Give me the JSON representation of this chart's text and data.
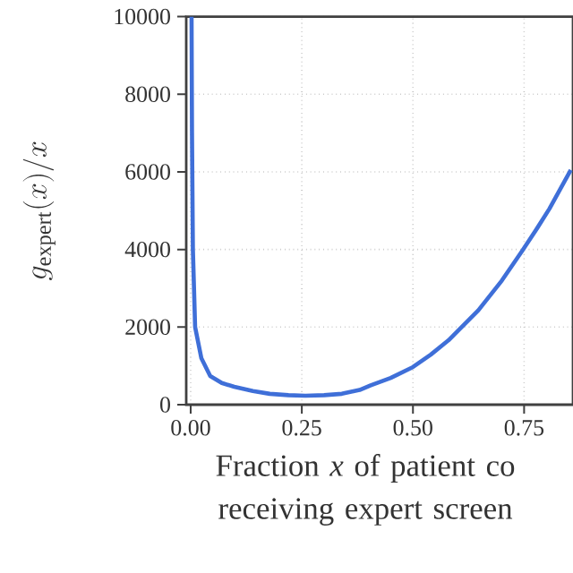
{
  "chart_data": {
    "type": "line",
    "xlabel": "Fraction *x* of patient co receiving expert screen",
    "ylabel": "g_{\\mathrm{expert}}(x)/x",
    "x": [
      0.002,
      0.003,
      0.005,
      0.01,
      0.024,
      0.044,
      0.07,
      0.098,
      0.14,
      0.178,
      0.22,
      0.258,
      0.3,
      0.34,
      0.38,
      0.405,
      0.45,
      0.5,
      0.54,
      0.58,
      0.647,
      0.7,
      0.746,
      0.78,
      0.807,
      0.83,
      0.855
    ],
    "series": [
      {
        "color": "#3f6fd8",
        "values": [
          10000,
          7000,
          4000,
          2000,
          1200,
          740,
          560,
          460,
          350,
          280,
          245,
          230,
          245,
          280,
          380,
          500,
          690,
          970,
          1290,
          1660,
          2430,
          3200,
          3970,
          4560,
          5050,
          5530,
          6050
        ]
      }
    ],
    "xlim": [
      -0.01,
      0.86
    ],
    "ylim": [
      0,
      10000
    ],
    "xticks": [
      {
        "value": 0,
        "label": "0.00"
      },
      {
        "value": 0.25,
        "label": "0.25"
      },
      {
        "value": 0.5,
        "label": "0.50"
      },
      {
        "value": 0.75,
        "label": "0.75"
      }
    ],
    "yticks": [
      0,
      2000,
      4000,
      6000,
      8000,
      10000
    ],
    "grid": true,
    "line_style": "solid"
  }
}
